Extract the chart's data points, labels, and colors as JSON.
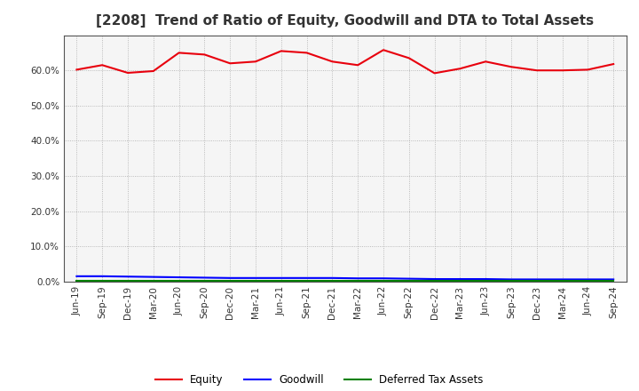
{
  "title": "[2208]  Trend of Ratio of Equity, Goodwill and DTA to Total Assets",
  "x_labels": [
    "Jun-19",
    "Sep-19",
    "Dec-19",
    "Mar-20",
    "Jun-20",
    "Sep-20",
    "Dec-20",
    "Mar-21",
    "Jun-21",
    "Sep-21",
    "Dec-21",
    "Mar-22",
    "Jun-22",
    "Sep-22",
    "Dec-22",
    "Mar-23",
    "Jun-23",
    "Sep-23",
    "Dec-23",
    "Mar-24",
    "Jun-24",
    "Sep-24"
  ],
  "equity": [
    60.2,
    61.5,
    59.3,
    59.8,
    65.0,
    64.5,
    62.0,
    62.5,
    65.5,
    65.0,
    62.5,
    61.5,
    65.8,
    63.5,
    59.2,
    60.5,
    62.5,
    61.0,
    60.0,
    60.0,
    60.2,
    61.8
  ],
  "goodwill": [
    1.5,
    1.5,
    1.4,
    1.3,
    1.2,
    1.1,
    1.0,
    1.0,
    1.0,
    1.0,
    1.0,
    0.9,
    0.9,
    0.8,
    0.7,
    0.7,
    0.7,
    0.6,
    0.6,
    0.6,
    0.6,
    0.6
  ],
  "dta": [
    0.3,
    0.3,
    0.3,
    0.3,
    0.3,
    0.3,
    0.3,
    0.3,
    0.3,
    0.3,
    0.3,
    0.3,
    0.3,
    0.3,
    0.3,
    0.3,
    0.3,
    0.3,
    0.3,
    0.3,
    0.3,
    0.3
  ],
  "equity_color": "#e8000d",
  "goodwill_color": "#0000ff",
  "dta_color": "#008000",
  "ylim": [
    0.0,
    70.0
  ],
  "yticks": [
    0.0,
    10.0,
    20.0,
    30.0,
    40.0,
    50.0,
    60.0
  ],
  "bg_color": "#ffffff",
  "plot_bg_color": "#f5f5f5",
  "grid_color": "#aaaaaa",
  "title_fontsize": 11,
  "tick_fontsize": 7.5,
  "legend_labels": [
    "Equity",
    "Goodwill",
    "Deferred Tax Assets"
  ],
  "title_color": "#333333"
}
